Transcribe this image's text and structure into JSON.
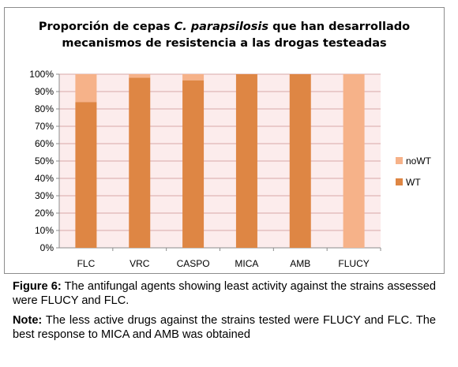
{
  "title": {
    "line1_pre": "Proporción de cepas ",
    "line1_italic": "C. parapsilosis",
    "line1_post": " que han desarrollado",
    "line2": "mecanismos de resistencia a las drogas testeadas"
  },
  "chart_data": {
    "type": "bar",
    "stacked": true,
    "percent": true,
    "categories": [
      "FLC",
      "VRC",
      "CASPO",
      "MICA",
      "AMB",
      "FLUCY"
    ],
    "series": [
      {
        "name": "WT",
        "color": "#de8644",
        "values": [
          84,
          98,
          96.5,
          100,
          100,
          0
        ]
      },
      {
        "name": "noWT",
        "color": "#f6b289",
        "values": [
          16,
          2,
          3.5,
          0,
          0,
          100
        ]
      }
    ],
    "yticks": [
      "0%",
      "10%",
      "20%",
      "30%",
      "40%",
      "50%",
      "60%",
      "70%",
      "80%",
      "90%",
      "100%"
    ],
    "ylim": [
      0,
      100
    ],
    "grid": true,
    "plot_background": "#fcecec",
    "legend_position": "right",
    "legend_order": [
      "noWT",
      "WT"
    ]
  },
  "caption": {
    "figure_lead": "Figure 6:",
    "figure_text": " The antifungal agents showing least activity against the strains assessed were FLUCY and FLC.",
    "note_lead": "Note:",
    "note_text": " The less active drugs against the strains tested were FLUCY and FLC. The best response to MICA and AMB was obtained"
  }
}
